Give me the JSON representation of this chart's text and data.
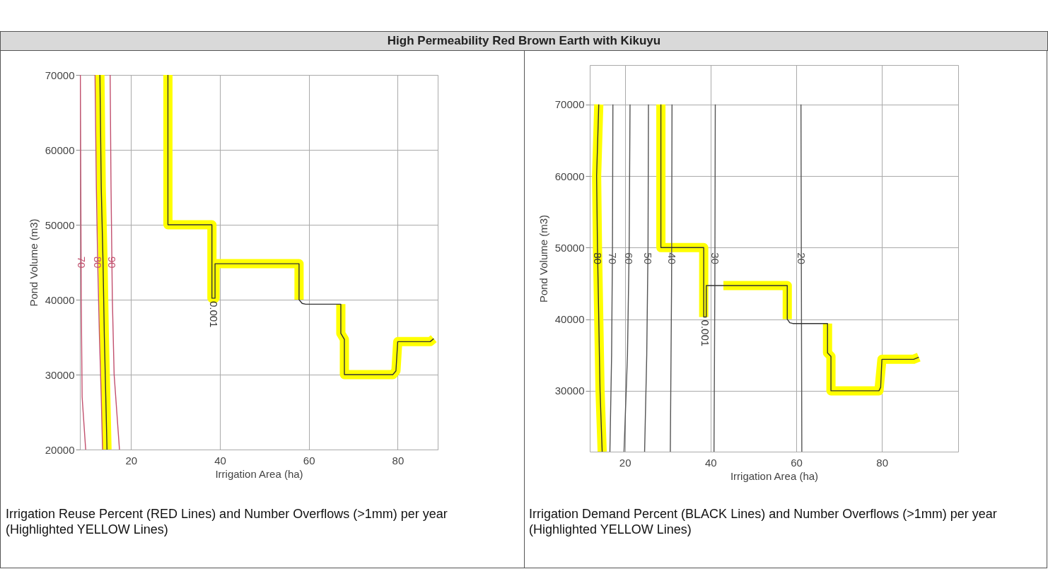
{
  "chart_data": [
    {
      "type": "line",
      "title": "High Permeability Red Brown Earth with Kikuyu",
      "xlabel": "Irrigation Area (ha)",
      "ylabel": "Pond Volume (m3)",
      "xlim": [
        8.5,
        89
      ],
      "xticks": [
        20,
        40,
        60,
        80
      ],
      "ylim": [
        20000,
        70000
      ],
      "yticks": [
        20000,
        30000,
        40000,
        50000,
        60000,
        70000
      ],
      "grid": true,
      "annotations": [
        "Irrigation Reuse Percent (RED Lines) and Number Overflows (>1mm) per year (Highlighted YELLOW Lines)"
      ],
      "series": [
        {
          "color": "#ffff00",
          "x": [
            13.0,
            13.3,
            13.7,
            14.0,
            14.4,
            14.6
          ],
          "values": [
            70000,
            55000,
            45000,
            35000,
            25000,
            20000
          ]
        },
        {
          "color": "#ffff00",
          "x": [
            28.3,
            28.3,
            38.2,
            38.2,
            38.9,
            38.9,
            57.8,
            57.8
          ],
          "values": [
            70000,
            50000,
            50000,
            40200,
            40200,
            44800,
            44800,
            40000
          ]
        },
        {
          "color": "#ffff00",
          "x": [
            67.2,
            67.2,
            68.0,
            68.0,
            78.9,
            79.6,
            80.0,
            87.3,
            88.1
          ],
          "values": [
            39400,
            35500,
            34700,
            30000,
            30000,
            30500,
            34400,
            34400,
            34800
          ]
        },
        {
          "name": "70",
          "color": "#c2506e",
          "x": [
            8.6,
            8.7,
            8.8,
            9.0,
            9.8
          ],
          "values": [
            70000,
            55000,
            40000,
            27000,
            20000
          ]
        },
        {
          "name": "80",
          "color": "#c2506e",
          "x": [
            11.9,
            12.2,
            12.5,
            12.9,
            13.3,
            13.6
          ],
          "values": [
            70000,
            55000,
            45000,
            35000,
            27000,
            20000
          ]
        },
        {
          "name": "90",
          "color": "#c2506e",
          "x": [
            15.3,
            15.5,
            15.8,
            16.2,
            16.8,
            17.4
          ],
          "values": [
            70000,
            55000,
            40000,
            30000,
            25000,
            20000
          ]
        },
        {
          "color": "#333333",
          "x": [
            13.0,
            13.3,
            13.7,
            14.0,
            14.4,
            14.6
          ],
          "values": [
            70000,
            55000,
            45000,
            35000,
            25000,
            20000
          ]
        },
        {
          "name": "0.001",
          "color": "#333333",
          "x": [
            28.3,
            28.3,
            38.2,
            38.2,
            38.9,
            38.9,
            57.8,
            57.8,
            58.5,
            59.3,
            67.2,
            67.2,
            68.0,
            68.0,
            78.9,
            79.6,
            80.0,
            87.3,
            88.1
          ],
          "values": [
            70000,
            50000,
            50000,
            40200,
            40200,
            44800,
            44800,
            40000,
            39500,
            39400,
            39400,
            35500,
            34700,
            30000,
            30000,
            30500,
            34400,
            34400,
            34800
          ]
        }
      ]
    },
    {
      "type": "line",
      "xlabel": "Irrigation Area (ha)",
      "ylabel": "Pond Volume (m3)",
      "xlim": [
        11.8,
        97.8
      ],
      "xticks": [
        20,
        40,
        60,
        80
      ],
      "ylim": [
        21500,
        75500
      ],
      "yticks": [
        30000,
        40000,
        50000,
        60000,
        70000
      ],
      "grid": true,
      "annotations": [
        "Irrigation Demand Percent (BLACK Lines) and Number Overflows (>1mm) per year (Highlighted YELLOW Lines)"
      ],
      "series": [
        {
          "color": "#ffff00",
          "x": [
            13.9,
            13.4,
            13.6,
            13.9,
            14.2,
            14.7
          ],
          "values": [
            70000,
            60000,
            50000,
            40000,
            30000,
            21500
          ]
        },
        {
          "color": "#ffff00",
          "x": [
            28.4,
            28.4,
            38.4,
            38.4
          ],
          "values": [
            70000,
            50000,
            50000,
            40300
          ]
        },
        {
          "color": "#ffff00",
          "x": [
            43,
            57.9,
            57.9
          ],
          "values": [
            44700,
            44700,
            40000
          ]
        },
        {
          "color": "#ffff00",
          "x": [
            67.3,
            67.3,
            68.1,
            68.1,
            79.3,
            80.0,
            87.4,
            88.6
          ],
          "values": [
            39400,
            35300,
            34800,
            30000,
            30000,
            34400,
            34400,
            34700
          ]
        },
        {
          "name": "80",
          "color": "#333333",
          "x": [
            13.9,
            13.4,
            13.6,
            13.9,
            14.2,
            14.7
          ],
          "values": [
            70000,
            60000,
            50000,
            40000,
            30000,
            21500
          ]
        },
        {
          "name": "70",
          "color": "#555555",
          "x": [
            17.2,
            17.1,
            16.9,
            16.5
          ],
          "values": [
            70000,
            50000,
            35000,
            21500
          ]
        },
        {
          "name": "60",
          "color": "#555555",
          "x": [
            21.2,
            21.0,
            20.6,
            19.8
          ],
          "values": [
            70000,
            50000,
            35000,
            21500
          ]
        },
        {
          "name": "50",
          "color": "#555555",
          "x": [
            25.5,
            25.4,
            25.1,
            24.6
          ],
          "values": [
            70000,
            50000,
            35000,
            21500
          ]
        },
        {
          "name": "40",
          "color": "#555555",
          "x": [
            31.0,
            30.9,
            30.6
          ],
          "values": [
            70000,
            45000,
            21500
          ]
        },
        {
          "name": "30",
          "color": "#555555",
          "x": [
            41.1,
            41.0,
            40.8
          ],
          "values": [
            70000,
            45000,
            21500
          ]
        },
        {
          "name": "20",
          "color": "#555555",
          "x": [
            61.1,
            61.2,
            61.3
          ],
          "values": [
            70000,
            45000,
            21500
          ]
        },
        {
          "name": "0.001",
          "color": "#333333",
          "x": [
            28.4,
            28.4,
            38.4,
            38.4,
            39.0,
            39.0,
            57.9,
            57.9,
            58.5,
            59.2,
            67.3,
            67.3,
            68.1,
            68.1,
            79.3,
            79.7,
            80.0,
            87.4,
            88.6
          ],
          "values": [
            70000,
            50000,
            50000,
            40300,
            40300,
            44700,
            44700,
            40000,
            39500,
            39400,
            39400,
            35300,
            34800,
            30000,
            30000,
            30500,
            34400,
            34400,
            34700
          ]
        }
      ]
    }
  ]
}
